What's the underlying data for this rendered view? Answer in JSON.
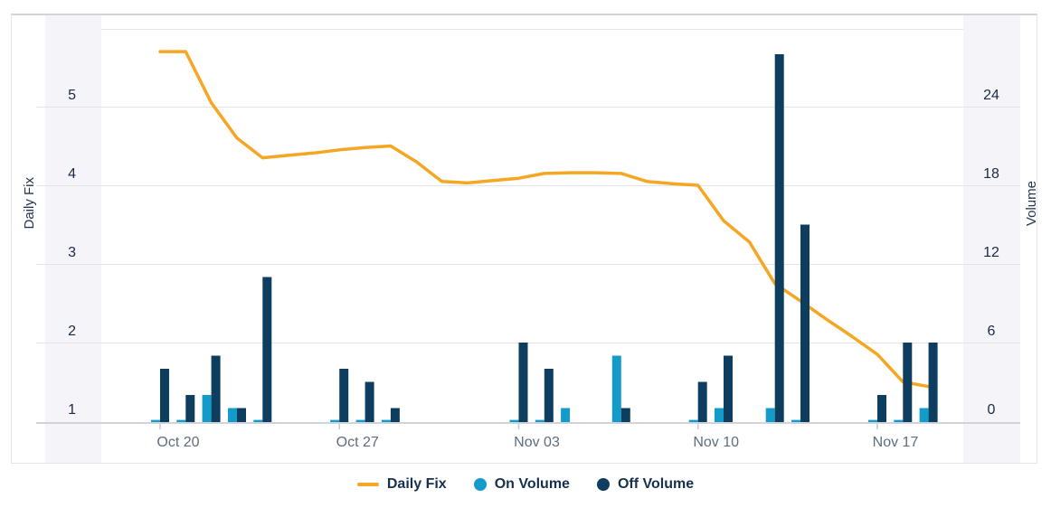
{
  "chart_data": {
    "type": "combo-line-bar-dual-axis",
    "x_axis": {
      "tick_labels": [
        "Oct 20",
        "Oct 27",
        "Nov 03",
        "Nov 10",
        "Nov 17"
      ],
      "tick_day_index": [
        0,
        7,
        14,
        21,
        28
      ]
    },
    "left_axis": {
      "title": "Daily Fix",
      "tick_labels": [
        1,
        2,
        3,
        4,
        5
      ],
      "range": [
        1,
        6
      ]
    },
    "right_axis": {
      "title": "Volume",
      "tick_labels": [
        0,
        6,
        12,
        18,
        24
      ],
      "range": [
        0,
        30
      ]
    },
    "grid": "horizontal-on",
    "legend_position": "bottom",
    "dates": [
      "Oct 20",
      "Oct 21",
      "Oct 22",
      "Oct 23",
      "Oct 24",
      "Oct 25",
      "Oct 26",
      "Oct 27",
      "Oct 28",
      "Oct 29",
      "Oct 30",
      "Oct 31",
      "Nov 01",
      "Nov 02",
      "Nov 03",
      "Nov 04",
      "Nov 05",
      "Nov 06",
      "Nov 07",
      "Nov 08",
      "Nov 09",
      "Nov 10",
      "Nov 11",
      "Nov 12",
      "Nov 13",
      "Nov 14",
      "Nov 15",
      "Nov 16",
      "Nov 17",
      "Nov 18",
      "Nov 19"
    ],
    "series": [
      {
        "name": "Daily Fix",
        "type": "line",
        "axis": "left",
        "color": "#F5A623",
        "values": [
          5.7,
          5.7,
          5.05,
          4.6,
          4.35,
          4.38,
          4.41,
          4.45,
          4.48,
          4.5,
          4.3,
          4.05,
          4.03,
          4.06,
          4.09,
          4.15,
          4.16,
          4.16,
          4.15,
          4.05,
          4.02,
          4.0,
          3.55,
          3.28,
          2.75,
          2.53,
          2.3,
          2.08,
          1.85,
          1.5,
          1.44
        ]
      },
      {
        "name": "On Volume",
        "type": "bar",
        "axis": "right",
        "color": "#139CC9",
        "values": [
          0.1,
          0.1,
          2,
          1,
          0.1,
          null,
          null,
          0.1,
          0.1,
          0.1,
          null,
          null,
          null,
          null,
          0.1,
          0.1,
          1,
          null,
          5,
          null,
          null,
          0.1,
          1,
          null,
          1,
          0.1,
          null,
          null,
          0.1,
          0.1,
          1
        ]
      },
      {
        "name": "Off Volume",
        "type": "bar",
        "axis": "right",
        "color": "#0D3D5F",
        "values": [
          4,
          2,
          5,
          1,
          11,
          null,
          null,
          4,
          3,
          1,
          null,
          null,
          null,
          null,
          6,
          4,
          null,
          null,
          1,
          null,
          null,
          3,
          5,
          null,
          28,
          15,
          null,
          null,
          2,
          6,
          6
        ]
      }
    ]
  },
  "legend": {
    "items": [
      {
        "label": "Daily Fix",
        "swatch": "line",
        "color": "#F5A623"
      },
      {
        "label": "On Volume",
        "swatch": "circle",
        "color": "#139CC9"
      },
      {
        "label": "Off Volume",
        "swatch": "circle",
        "color": "#0D3D5F"
      }
    ]
  },
  "colors": {
    "daily_fix_line": "#F5A623",
    "on_volume": "#139CC9",
    "off_volume": "#0D3D5F",
    "axis_band": "#F4F4F9",
    "gridline": "#E4E4EA",
    "axis_line": "#D2D2DA",
    "week_tick": "#C8C9D2",
    "value_tick_text": "#1B2946",
    "date_tick_text": "#5E6D7D",
    "axis_title_text": "#22364D",
    "legend_text": "#16304E",
    "card_border": "#E4E4EC"
  }
}
